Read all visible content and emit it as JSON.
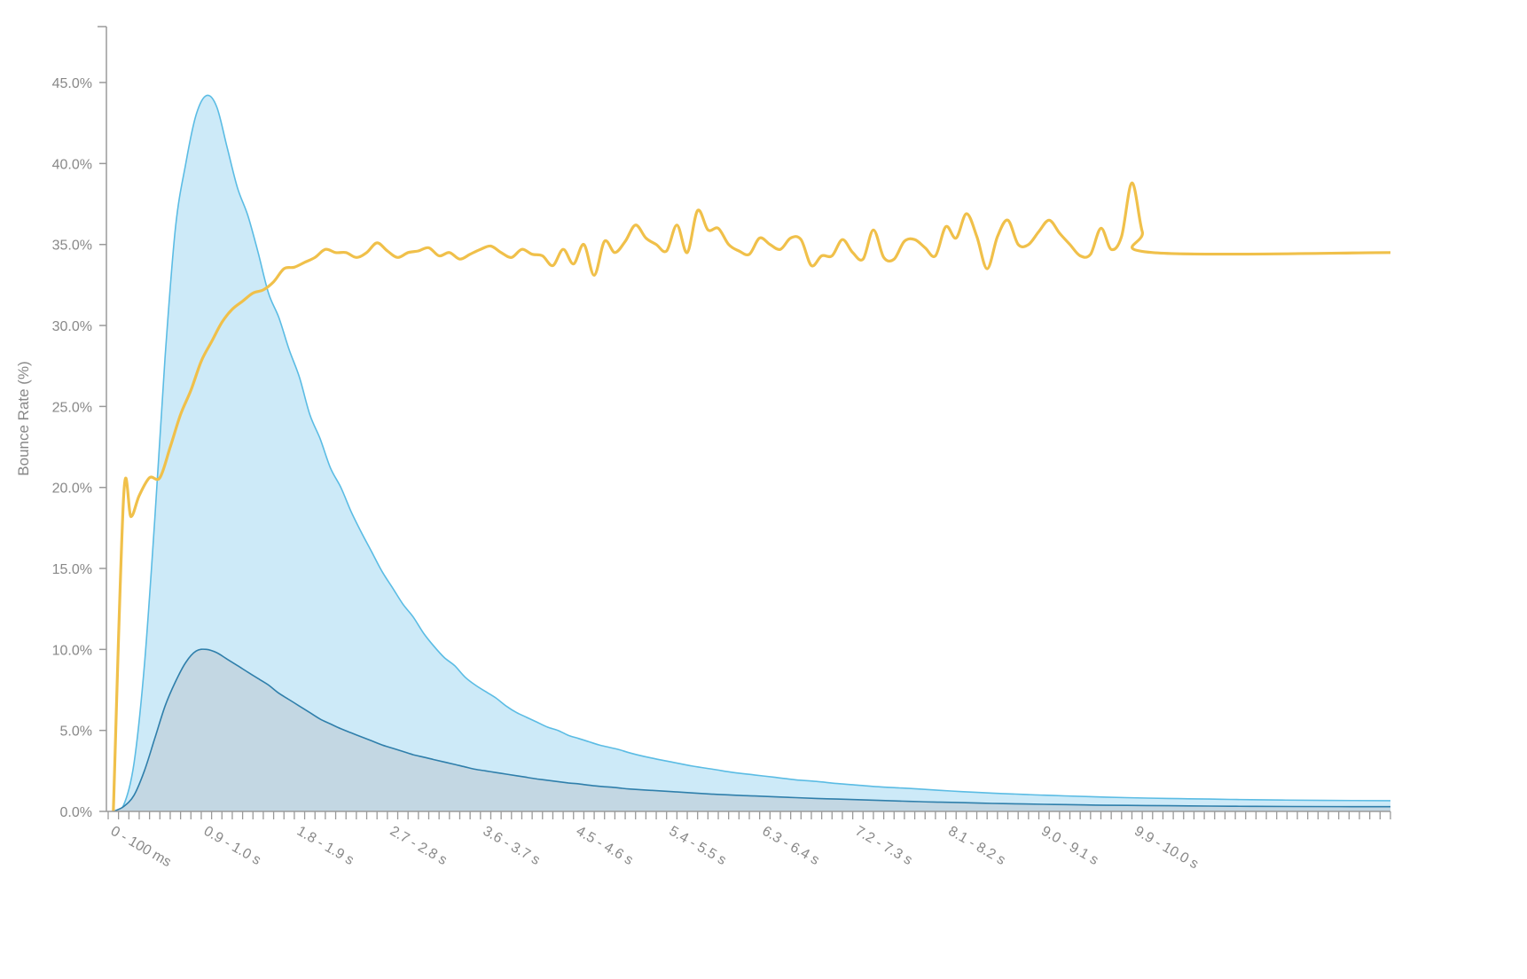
{
  "chart_data": {
    "type": "area",
    "title": "",
    "xlabel": "",
    "ylabel": "Bounce Rate (%)",
    "ylim": [
      0,
      49
    ],
    "xlim": [
      0,
      12.4
    ],
    "grid": false,
    "legend": "none",
    "y_ticks": [
      {
        "value": 0,
        "label": "0.0%"
      },
      {
        "value": 5,
        "label": "5.0%"
      },
      {
        "value": 10,
        "label": "10.0%"
      },
      {
        "value": 15,
        "label": "15.0%"
      },
      {
        "value": 20,
        "label": "20.0%"
      },
      {
        "value": 25,
        "label": "25.0%"
      },
      {
        "value": 30,
        "label": "30.0%"
      },
      {
        "value": 35,
        "label": "35.0%"
      },
      {
        "value": 40,
        "label": "40.0%"
      },
      {
        "value": 45,
        "label": "45.0%"
      }
    ],
    "x_ticks": [
      {
        "value": 0.05,
        "label": "0 - 100 ms"
      },
      {
        "value": 0.95,
        "label": "0.9 - 1.0 s"
      },
      {
        "value": 1.85,
        "label": "1.8 - 1.9 s"
      },
      {
        "value": 2.75,
        "label": "2.7 - 2.8 s"
      },
      {
        "value": 3.65,
        "label": "3.6 - 3.7 s"
      },
      {
        "value": 4.55,
        "label": "4.5 - 4.6 s"
      },
      {
        "value": 5.45,
        "label": "5.4 - 5.5 s"
      },
      {
        "value": 6.35,
        "label": "6.3 - 6.4 s"
      },
      {
        "value": 7.25,
        "label": "7.2 - 7.3 s"
      },
      {
        "value": 8.15,
        "label": "8.1 - 8.2 s"
      },
      {
        "value": 9.05,
        "label": "9.0 - 9.1 s"
      },
      {
        "value": 9.95,
        "label": "9.9 - 10.0 s"
      }
    ],
    "series": [
      {
        "kind": "area",
        "fill": "#cdeaf8",
        "stroke": "#5bbce4",
        "points": [
          [
            0.05,
            0
          ],
          [
            0.15,
            0.4
          ],
          [
            0.25,
            3
          ],
          [
            0.35,
            9
          ],
          [
            0.45,
            18
          ],
          [
            0.55,
            28
          ],
          [
            0.65,
            36
          ],
          [
            0.75,
            40
          ],
          [
            0.85,
            43
          ],
          [
            0.95,
            44.2
          ],
          [
            1.05,
            43.5
          ],
          [
            1.15,
            41
          ],
          [
            1.25,
            38.5
          ],
          [
            1.35,
            36.8
          ],
          [
            1.45,
            34.5
          ],
          [
            1.55,
            32
          ],
          [
            1.65,
            30.5
          ],
          [
            1.75,
            28.5
          ],
          [
            1.85,
            26.8
          ],
          [
            1.95,
            24.5
          ],
          [
            2.05,
            23
          ],
          [
            2.15,
            21.2
          ],
          [
            2.25,
            20
          ],
          [
            2.35,
            18.5
          ],
          [
            2.45,
            17.2
          ],
          [
            2.55,
            16
          ],
          [
            2.65,
            14.8
          ],
          [
            2.75,
            13.8
          ],
          [
            2.85,
            12.8
          ],
          [
            2.95,
            12
          ],
          [
            3.05,
            11
          ],
          [
            3.15,
            10.2
          ],
          [
            3.25,
            9.5
          ],
          [
            3.35,
            9
          ],
          [
            3.45,
            8.3
          ],
          [
            3.55,
            7.8
          ],
          [
            3.65,
            7.4
          ],
          [
            3.75,
            7
          ],
          [
            3.85,
            6.5
          ],
          [
            3.95,
            6.1
          ],
          [
            4.05,
            5.8
          ],
          [
            4.15,
            5.5
          ],
          [
            4.25,
            5.2
          ],
          [
            4.35,
            5
          ],
          [
            4.45,
            4.7
          ],
          [
            4.55,
            4.5
          ],
          [
            4.65,
            4.3
          ],
          [
            4.75,
            4.1
          ],
          [
            4.85,
            3.95
          ],
          [
            4.95,
            3.8
          ],
          [
            5.05,
            3.6
          ],
          [
            5.25,
            3.3
          ],
          [
            5.45,
            3.05
          ],
          [
            5.65,
            2.8
          ],
          [
            5.85,
            2.6
          ],
          [
            6.05,
            2.4
          ],
          [
            6.25,
            2.25
          ],
          [
            6.45,
            2.1
          ],
          [
            6.65,
            1.95
          ],
          [
            6.85,
            1.85
          ],
          [
            7.05,
            1.72
          ],
          [
            7.25,
            1.62
          ],
          [
            7.45,
            1.52
          ],
          [
            7.65,
            1.45
          ],
          [
            7.85,
            1.38
          ],
          [
            8.05,
            1.3
          ],
          [
            8.25,
            1.22
          ],
          [
            8.45,
            1.16
          ],
          [
            8.65,
            1.1
          ],
          [
            8.85,
            1.05
          ],
          [
            9.05,
            1
          ],
          [
            9.25,
            0.96
          ],
          [
            9.45,
            0.92
          ],
          [
            9.65,
            0.88
          ],
          [
            9.85,
            0.85
          ],
          [
            10.05,
            0.82
          ],
          [
            10.25,
            0.8
          ],
          [
            10.45,
            0.78
          ],
          [
            10.65,
            0.76
          ],
          [
            10.85,
            0.74
          ],
          [
            11.05,
            0.72
          ],
          [
            11.35,
            0.7
          ],
          [
            11.75,
            0.68
          ],
          [
            12.4,
            0.66
          ]
        ]
      },
      {
        "kind": "area",
        "fill": "#c3d7e3",
        "stroke": "#2f7fab",
        "points": [
          [
            0.05,
            0
          ],
          [
            0.15,
            0.3
          ],
          [
            0.25,
            1
          ],
          [
            0.35,
            2.5
          ],
          [
            0.45,
            4.5
          ],
          [
            0.55,
            6.5
          ],
          [
            0.65,
            8
          ],
          [
            0.75,
            9.2
          ],
          [
            0.85,
            9.9
          ],
          [
            0.95,
            10
          ],
          [
            1.05,
            9.8
          ],
          [
            1.15,
            9.4
          ],
          [
            1.25,
            9
          ],
          [
            1.35,
            8.6
          ],
          [
            1.45,
            8.2
          ],
          [
            1.55,
            7.8
          ],
          [
            1.65,
            7.3
          ],
          [
            1.75,
            6.9
          ],
          [
            1.85,
            6.5
          ],
          [
            1.95,
            6.1
          ],
          [
            2.05,
            5.7
          ],
          [
            2.15,
            5.4
          ],
          [
            2.25,
            5.1
          ],
          [
            2.35,
            4.85
          ],
          [
            2.45,
            4.6
          ],
          [
            2.55,
            4.35
          ],
          [
            2.65,
            4.1
          ],
          [
            2.75,
            3.9
          ],
          [
            2.85,
            3.7
          ],
          [
            2.95,
            3.5
          ],
          [
            3.05,
            3.35
          ],
          [
            3.15,
            3.2
          ],
          [
            3.25,
            3.05
          ],
          [
            3.35,
            2.9
          ],
          [
            3.45,
            2.75
          ],
          [
            3.55,
            2.6
          ],
          [
            3.65,
            2.5
          ],
          [
            3.75,
            2.4
          ],
          [
            3.85,
            2.3
          ],
          [
            3.95,
            2.2
          ],
          [
            4.05,
            2.1
          ],
          [
            4.15,
            2
          ],
          [
            4.25,
            1.92
          ],
          [
            4.35,
            1.84
          ],
          [
            4.45,
            1.76
          ],
          [
            4.55,
            1.7
          ],
          [
            4.65,
            1.62
          ],
          [
            4.75,
            1.55
          ],
          [
            4.85,
            1.5
          ],
          [
            4.95,
            1.44
          ],
          [
            5.05,
            1.38
          ],
          [
            5.25,
            1.3
          ],
          [
            5.45,
            1.22
          ],
          [
            5.65,
            1.14
          ],
          [
            5.85,
            1.06
          ],
          [
            6.05,
            1
          ],
          [
            6.25,
            0.95
          ],
          [
            6.45,
            0.9
          ],
          [
            6.65,
            0.85
          ],
          [
            6.85,
            0.8
          ],
          [
            7.05,
            0.76
          ],
          [
            7.25,
            0.72
          ],
          [
            7.45,
            0.68
          ],
          [
            7.65,
            0.64
          ],
          [
            7.85,
            0.6
          ],
          [
            8.05,
            0.57
          ],
          [
            8.25,
            0.54
          ],
          [
            8.45,
            0.51
          ],
          [
            8.65,
            0.48
          ],
          [
            8.85,
            0.46
          ],
          [
            9.05,
            0.44
          ],
          [
            9.25,
            0.42
          ],
          [
            9.45,
            0.4
          ],
          [
            9.65,
            0.38
          ],
          [
            9.85,
            0.37
          ],
          [
            10.05,
            0.36
          ],
          [
            10.25,
            0.35
          ],
          [
            10.45,
            0.34
          ],
          [
            10.65,
            0.33
          ],
          [
            10.85,
            0.32
          ],
          [
            11.05,
            0.31
          ],
          [
            11.45,
            0.3
          ],
          [
            12.4,
            0.29
          ]
        ]
      },
      {
        "kind": "line",
        "stroke": "#f0c04a",
        "points": [
          [
            0.05,
            0
          ],
          [
            0.15,
            19.5
          ],
          [
            0.22,
            18.2
          ],
          [
            0.3,
            19.5
          ],
          [
            0.4,
            20.6
          ],
          [
            0.5,
            20.6
          ],
          [
            0.6,
            22.5
          ],
          [
            0.7,
            24.5
          ],
          [
            0.8,
            26
          ],
          [
            0.9,
            27.8
          ],
          [
            1,
            29
          ],
          [
            1.1,
            30.2
          ],
          [
            1.2,
            31
          ],
          [
            1.3,
            31.5
          ],
          [
            1.4,
            32
          ],
          [
            1.5,
            32.2
          ],
          [
            1.6,
            32.7
          ],
          [
            1.7,
            33.5
          ],
          [
            1.8,
            33.6
          ],
          [
            1.9,
            33.9
          ],
          [
            2,
            34.2
          ],
          [
            2.1,
            34.7
          ],
          [
            2.2,
            34.5
          ],
          [
            2.3,
            34.5
          ],
          [
            2.4,
            34.2
          ],
          [
            2.5,
            34.5
          ],
          [
            2.6,
            35.1
          ],
          [
            2.7,
            34.6
          ],
          [
            2.8,
            34.2
          ],
          [
            2.9,
            34.5
          ],
          [
            3,
            34.6
          ],
          [
            3.1,
            34.8
          ],
          [
            3.2,
            34.3
          ],
          [
            3.3,
            34.5
          ],
          [
            3.4,
            34.1
          ],
          [
            3.5,
            34.4
          ],
          [
            3.6,
            34.7
          ],
          [
            3.7,
            34.9
          ],
          [
            3.8,
            34.5
          ],
          [
            3.9,
            34.2
          ],
          [
            4,
            34.7
          ],
          [
            4.1,
            34.4
          ],
          [
            4.2,
            34.3
          ],
          [
            4.3,
            33.7
          ],
          [
            4.4,
            34.7
          ],
          [
            4.5,
            33.8
          ],
          [
            4.6,
            35
          ],
          [
            4.7,
            33.1
          ],
          [
            4.8,
            35.2
          ],
          [
            4.9,
            34.5
          ],
          [
            5,
            35.2
          ],
          [
            5.1,
            36.2
          ],
          [
            5.2,
            35.4
          ],
          [
            5.3,
            35
          ],
          [
            5.4,
            34.6
          ],
          [
            5.5,
            36.2
          ],
          [
            5.6,
            34.5
          ],
          [
            5.7,
            37.1
          ],
          [
            5.8,
            35.9
          ],
          [
            5.9,
            36
          ],
          [
            6,
            35
          ],
          [
            6.1,
            34.6
          ],
          [
            6.2,
            34.4
          ],
          [
            6.3,
            35.4
          ],
          [
            6.4,
            35
          ],
          [
            6.5,
            34.7
          ],
          [
            6.6,
            35.4
          ],
          [
            6.7,
            35.3
          ],
          [
            6.8,
            33.7
          ],
          [
            6.9,
            34.3
          ],
          [
            7,
            34.3
          ],
          [
            7.1,
            35.3
          ],
          [
            7.2,
            34.5
          ],
          [
            7.3,
            34.1
          ],
          [
            7.4,
            35.9
          ],
          [
            7.5,
            34.2
          ],
          [
            7.6,
            34.1
          ],
          [
            7.7,
            35.2
          ],
          [
            7.8,
            35.3
          ],
          [
            7.9,
            34.8
          ],
          [
            8,
            34.3
          ],
          [
            8.1,
            36.1
          ],
          [
            8.2,
            35.4
          ],
          [
            8.3,
            36.9
          ],
          [
            8.4,
            35.5
          ],
          [
            8.5,
            33.5
          ],
          [
            8.6,
            35.5
          ],
          [
            8.7,
            36.5
          ],
          [
            8.8,
            35
          ],
          [
            8.9,
            35
          ],
          [
            9,
            35.8
          ],
          [
            9.1,
            36.5
          ],
          [
            9.2,
            35.7
          ],
          [
            9.3,
            35
          ],
          [
            9.4,
            34.3
          ],
          [
            9.5,
            34.4
          ],
          [
            9.6,
            36
          ],
          [
            9.7,
            34.7
          ],
          [
            9.8,
            35.5
          ],
          [
            9.9,
            38.8
          ],
          [
            10,
            35.8
          ],
          [
            10.1,
            34.5
          ],
          [
            12.4,
            34.5
          ]
        ]
      }
    ]
  }
}
